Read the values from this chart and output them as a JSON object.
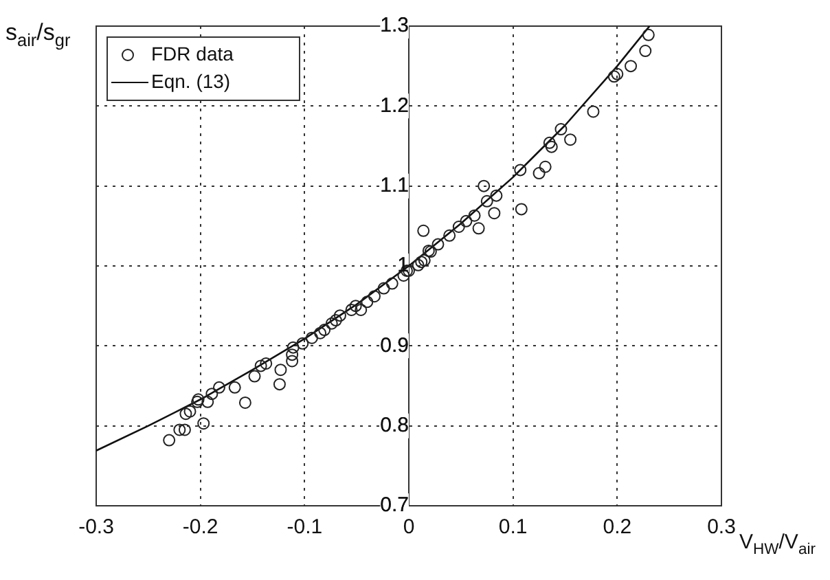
{
  "chart_data": {
    "type": "scatter",
    "xlabel": "V$_{HW}$/V$_{air}$",
    "ylabel": "s$_{air}$/s$_{gr}$",
    "xlim": [
      -0.3,
      0.3
    ],
    "xticks": [
      -0.3,
      -0.2,
      -0.1,
      0,
      0.1,
      0.2,
      0.3
    ],
    "ylim": [
      0.7,
      1.3
    ],
    "yticks": [
      0.7,
      0.8,
      0.9,
      1,
      1.1,
      1.2,
      1.3
    ],
    "grid": true,
    "legend": "top left",
    "marker": "circle",
    "series": [
      {
        "name": "FDR data",
        "color": "#222222",
        "x": [
          -0.23,
          -0.22,
          -0.215,
          -0.197,
          -0.214,
          -0.21,
          -0.203,
          -0.202,
          -0.193,
          -0.189,
          -0.182,
          -0.167,
          -0.157,
          -0.148,
          -0.142,
          -0.137,
          -0.124,
          -0.123,
          -0.112,
          -0.112,
          -0.111,
          -0.102,
          -0.093,
          -0.085,
          -0.081,
          -0.074,
          -0.07,
          -0.066,
          -0.055,
          -0.051,
          -0.046,
          -0.04,
          -0.033,
          -0.024,
          -0.016,
          -0.005,
          -0.002,
          0.012,
          0.014,
          0.021,
          0.0,
          0.009,
          0.015,
          0.019,
          0.028,
          0.039,
          0.048,
          0.055,
          0.063,
          0.067,
          0.072,
          0.075,
          0.082,
          0.084,
          0.107,
          0.108,
          0.125,
          0.131,
          0.135,
          0.137,
          0.146,
          0.155,
          0.177,
          0.197,
          0.2,
          0.213,
          0.227,
          0.23
        ],
        "values": [
          0.782,
          0.795,
          0.795,
          0.803,
          0.815,
          0.818,
          0.83,
          0.833,
          0.83,
          0.84,
          0.848,
          0.848,
          0.829,
          0.862,
          0.875,
          0.878,
          0.852,
          0.87,
          0.881,
          0.889,
          0.898,
          0.903,
          0.91,
          0.916,
          0.92,
          0.928,
          0.932,
          0.938,
          0.945,
          0.95,
          0.945,
          0.955,
          0.962,
          0.972,
          0.978,
          0.988,
          0.994,
          1.005,
          1.044,
          1.018,
          0.994,
          1.001,
          1.007,
          1.019,
          1.027,
          1.038,
          1.049,
          1.056,
          1.063,
          1.047,
          1.1,
          1.081,
          1.066,
          1.088,
          1.12,
          1.071,
          1.116,
          1.124,
          1.154,
          1.149,
          1.171,
          1.158,
          1.193,
          1.237,
          1.24,
          1.25,
          1.269,
          1.289
        ]
      },
      {
        "name": "Eqn. (13)",
        "type": "line",
        "color": "#111111",
        "marker": "none",
        "line_style": "solid",
        "x": [
          -0.3,
          -0.25,
          -0.2,
          -0.15,
          -0.1,
          -0.05,
          0,
          0.05,
          0.1,
          0.15,
          0.2,
          0.231
        ],
        "values": [
          0.769,
          0.8,
          0.833,
          0.87,
          0.909,
          0.952,
          1.0,
          1.053,
          1.111,
          1.176,
          1.25,
          1.3
        ]
      }
    ]
  }
}
